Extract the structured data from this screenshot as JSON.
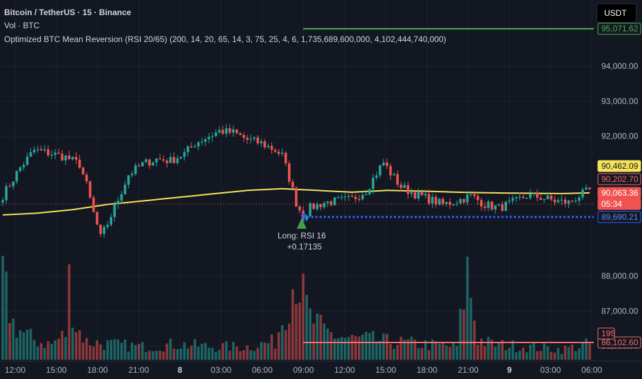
{
  "header": {
    "symbol_line": "Bitcoin / TetherUS · 15 · Binance",
    "volume_line": "Vol · BTC",
    "strategy_line": "Optimized BTC Mean Reversion (RSI 20/65) (200, 14, 20, 65, 14, 3, 75, 25, 4, 6, 1,735,689,600,000, 4,102,444,740,000)"
  },
  "currency_button": "USDT",
  "colors": {
    "background": "#131722",
    "up": "#26a69a",
    "down": "#ef5350",
    "ma": "#f5e35a",
    "target_line": "#4caf50",
    "stop_line": "#f26d6d",
    "entry_line": "#2962ff"
  },
  "chart_data": {
    "type": "candlestick",
    "y_ticks": [
      "94,000.00",
      "93,000.00",
      "92,000.00",
      "88,000.00",
      "87,000.00",
      "86,000.00"
    ],
    "x_ticks": [
      "12:00",
      "15:00",
      "18:00",
      "21:00",
      "8",
      "03:00",
      "06:00",
      "09:00",
      "12:00",
      "15:00",
      "18:00",
      "21:00",
      "9",
      "03:00",
      "06:00"
    ],
    "price_labels": [
      {
        "text": "95,071.62",
        "value": 95071.62,
        "style": "green-outline"
      },
      {
        "text": "90,462.09",
        "value": 90462.09,
        "style": "yellow"
      },
      {
        "text": "90,202.70",
        "value": 90202.7,
        "style": "red-outline"
      },
      {
        "text": "90,063.36",
        "value": 90063.36,
        "style": "red"
      },
      {
        "text": "05:34",
        "value": 89900,
        "style": "red-countdown"
      },
      {
        "text": "89,690.21",
        "value": 89690.21,
        "style": "blue-outline"
      },
      {
        "text": "86,102.60",
        "value": 86102.6,
        "style": "red-outline"
      },
      {
        "text": "195",
        "value": 195,
        "style": "red-outline-volume"
      }
    ],
    "lines": {
      "take_profit": 95071.62,
      "stop_loss": 86102.6,
      "entry": 89690.21,
      "last_price": 90063.36
    },
    "trade": {
      "label": "Long: RSI 16",
      "pnl": "+0.17135"
    },
    "moving_average_period": 200,
    "price_anchors": [
      [
        0,
        90300
      ],
      [
        5,
        91100
      ],
      [
        9,
        91600
      ],
      [
        14,
        91500
      ],
      [
        18,
        91400
      ],
      [
        22,
        91200
      ],
      [
        24,
        90600
      ],
      [
        26,
        89800
      ],
      [
        28,
        89100
      ],
      [
        30,
        89500
      ],
      [
        33,
        90200
      ],
      [
        36,
        90900
      ],
      [
        40,
        91200
      ],
      [
        44,
        91350
      ],
      [
        48,
        91300
      ],
      [
        52,
        91500
      ],
      [
        55,
        91800
      ],
      [
        58,
        91950
      ],
      [
        62,
        92150
      ],
      [
        66,
        92100
      ],
      [
        70,
        91900
      ],
      [
        74,
        91800
      ],
      [
        78,
        91600
      ],
      [
        80,
        91450
      ],
      [
        82,
        90800
      ],
      [
        84,
        90100
      ],
      [
        86,
        89700
      ],
      [
        88,
        89950
      ],
      [
        92,
        90100
      ],
      [
        96,
        90150
      ],
      [
        100,
        90200
      ],
      [
        104,
        90450
      ],
      [
        107,
        90950
      ],
      [
        109,
        91250
      ],
      [
        111,
        90950
      ],
      [
        114,
        90550
      ],
      [
        118,
        90350
      ],
      [
        122,
        90200
      ],
      [
        126,
        90050
      ],
      [
        130,
        90150
      ],
      [
        134,
        90300
      ],
      [
        138,
        90050
      ],
      [
        142,
        89950
      ],
      [
        146,
        90100
      ],
      [
        150,
        90300
      ],
      [
        154,
        90250
      ],
      [
        158,
        90150
      ],
      [
        162,
        90100
      ],
      [
        165,
        90300
      ],
      [
        168,
        90450
      ]
    ],
    "ma_anchors": [
      [
        0,
        89750
      ],
      [
        10,
        89800
      ],
      [
        20,
        89900
      ],
      [
        30,
        90050
      ],
      [
        40,
        90150
      ],
      [
        50,
        90250
      ],
      [
        60,
        90350
      ],
      [
        70,
        90450
      ],
      [
        80,
        90500
      ],
      [
        90,
        90450
      ],
      [
        100,
        90400
      ],
      [
        110,
        90450
      ],
      [
        120,
        90430
      ],
      [
        130,
        90400
      ],
      [
        140,
        90380
      ],
      [
        150,
        90370
      ],
      [
        160,
        90360
      ],
      [
        168,
        90380
      ]
    ],
    "volume_anchors": [
      [
        0,
        1500
      ],
      [
        3,
        700
      ],
      [
        6,
        500
      ],
      [
        10,
        350
      ],
      [
        14,
        300
      ],
      [
        18,
        500
      ],
      [
        19,
        1500
      ],
      [
        21,
        650
      ],
      [
        24,
        350
      ],
      [
        30,
        300
      ],
      [
        40,
        250
      ],
      [
        50,
        300
      ],
      [
        60,
        250
      ],
      [
        70,
        250
      ],
      [
        78,
        350
      ],
      [
        82,
        1250
      ],
      [
        84,
        1700
      ],
      [
        86,
        1200
      ],
      [
        88,
        800
      ],
      [
        92,
        550
      ],
      [
        96,
        450
      ],
      [
        100,
        400
      ],
      [
        104,
        400
      ],
      [
        110,
        350
      ],
      [
        120,
        300
      ],
      [
        130,
        250
      ],
      [
        133,
        1700
      ],
      [
        136,
        400
      ],
      [
        140,
        300
      ],
      [
        150,
        250
      ],
      [
        160,
        200
      ],
      [
        168,
        300
      ]
    ],
    "y_range": [
      85650,
      95500
    ],
    "num_candles": 169
  }
}
